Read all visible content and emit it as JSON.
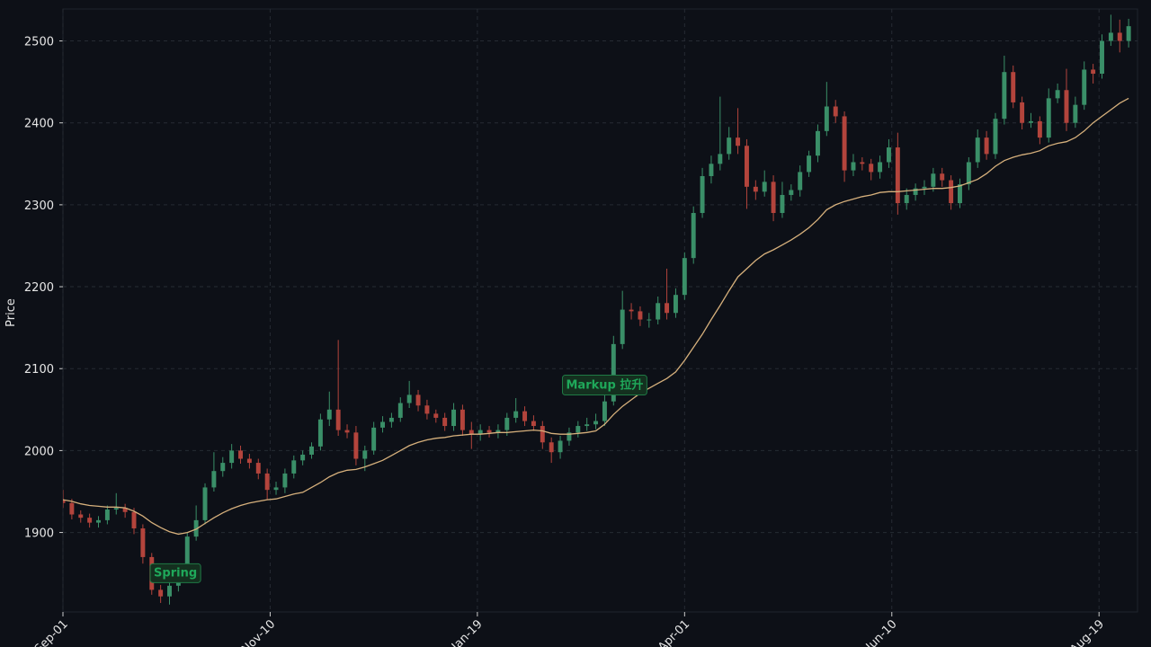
{
  "chart_data": {
    "type": "candlestick",
    "y_label": "Price",
    "x": [
      0,
      3,
      6,
      9,
      12,
      15,
      18,
      21,
      24,
      27,
      30,
      33,
      36,
      39,
      42,
      45,
      48,
      51,
      54,
      57,
      60,
      63,
      66,
      69,
      72,
      75,
      78,
      81,
      84,
      87,
      90,
      93,
      96,
      99,
      102,
      105,
      108,
      111,
      114,
      117,
      120,
      123,
      126,
      129,
      132,
      135,
      138,
      141,
      144,
      147,
      150,
      153,
      156,
      159,
      162,
      165,
      168,
      171,
      174,
      177,
      180,
      183,
      186,
      189,
      192,
      195,
      198,
      201,
      204,
      207,
      210,
      213,
      216,
      219,
      222,
      225,
      228,
      231,
      234,
      237,
      240,
      243,
      246,
      249,
      252,
      255,
      258,
      261,
      264,
      267,
      270,
      273,
      276,
      279,
      282,
      285,
      288,
      291,
      294,
      297,
      300,
      303,
      306,
      309,
      312,
      315,
      318,
      321,
      324,
      327,
      330,
      333,
      336,
      339,
      342,
      345,
      348,
      351,
      354,
      357,
      360
    ],
    "open": [
      1940,
      1936,
      1922,
      1918,
      1912,
      1915,
      1928,
      1930,
      1925,
      1905,
      1870,
      1830,
      1822,
      1835,
      1850,
      1895,
      1915,
      1955,
      1975,
      1985,
      2000,
      1990,
      1985,
      1972,
      1952,
      1955,
      1972,
      1988,
      1995,
      2005,
      2038,
      2050,
      2025,
      2022,
      1990,
      2000,
      2028,
      2035,
      2040,
      2058,
      2068,
      2055,
      2045,
      2040,
      2030,
      2050,
      2025,
      2020,
      2025,
      2022,
      2025,
      2040,
      2048,
      2036,
      2030,
      2010,
      1998,
      2012,
      2022,
      2030,
      2032,
      2036,
      2060,
      2130,
      2172,
      2170,
      2160,
      2160,
      2180,
      2168,
      2190,
      2235,
      2290,
      2335,
      2350,
      2362,
      2382,
      2372,
      2322,
      2316,
      2328,
      2290,
      2312,
      2318,
      2340,
      2360,
      2390,
      2420,
      2408,
      2342,
      2352,
      2350,
      2340,
      2352,
      2370,
      2302,
      2312,
      2320,
      2322,
      2338,
      2330,
      2302,
      2325,
      2352,
      2382,
      2362,
      2405,
      2462,
      2425,
      2400,
      2402,
      2382,
      2430,
      2440,
      2400,
      2422,
      2465,
      2460,
      2500,
      2510,
      2500
    ],
    "high": [
      1952,
      1941,
      1927,
      1923,
      1920,
      1933,
      1948,
      1935,
      1930,
      1910,
      1875,
      1836,
      1840,
      1856,
      1900,
      1933,
      1960,
      1998,
      1992,
      2008,
      2006,
      1996,
      1990,
      1978,
      1962,
      1978,
      1994,
      2000,
      2010,
      2045,
      2072,
      2135,
      2032,
      2030,
      2006,
      2035,
      2042,
      2046,
      2065,
      2085,
      2074,
      2062,
      2050,
      2046,
      2058,
      2056,
      2035,
      2032,
      2030,
      2032,
      2046,
      2064,
      2054,
      2043,
      2036,
      2016,
      2018,
      2028,
      2036,
      2040,
      2045,
      2068,
      2140,
      2195,
      2180,
      2176,
      2168,
      2188,
      2222,
      2198,
      2242,
      2298,
      2345,
      2360,
      2432,
      2395,
      2418,
      2380,
      2330,
      2342,
      2336,
      2328,
      2325,
      2348,
      2366,
      2398,
      2450,
      2428,
      2414,
      2362,
      2358,
      2356,
      2360,
      2380,
      2388,
      2320,
      2326,
      2330,
      2345,
      2345,
      2336,
      2332,
      2358,
      2392,
      2390,
      2412,
      2482,
      2470,
      2432,
      2412,
      2408,
      2442,
      2448,
      2466,
      2432,
      2475,
      2472,
      2508,
      2532,
      2526,
      2527
    ],
    "low": [
      1930,
      1916,
      1912,
      1906,
      1906,
      1910,
      1922,
      1918,
      1898,
      1862,
      1824,
      1814,
      1812,
      1828,
      1845,
      1890,
      1910,
      1950,
      1968,
      1978,
      1984,
      1978,
      1965,
      1940,
      1946,
      1948,
      1966,
      1982,
      1990,
      2000,
      2030,
      2018,
      2015,
      1982,
      1975,
      1995,
      2022,
      2028,
      2035,
      2052,
      2048,
      2038,
      2034,
      2024,
      2024,
      2018,
      2002,
      2012,
      2016,
      2015,
      2018,
      2034,
      2030,
      2024,
      2002,
      1985,
      1990,
      2006,
      2016,
      2024,
      2026,
      2030,
      2055,
      2124,
      2160,
      2152,
      2150,
      2154,
      2160,
      2162,
      2184,
      2228,
      2284,
      2326,
      2342,
      2355,
      2362,
      2295,
      2306,
      2310,
      2280,
      2284,
      2305,
      2310,
      2334,
      2352,
      2384,
      2400,
      2328,
      2335,
      2342,
      2330,
      2332,
      2345,
      2288,
      2294,
      2305,
      2312,
      2316,
      2322,
      2294,
      2296,
      2318,
      2345,
      2355,
      2356,
      2398,
      2418,
      2392,
      2394,
      2374,
      2376,
      2424,
      2390,
      2394,
      2416,
      2448,
      2454,
      2494,
      2486,
      2492
    ],
    "close": [
      1936,
      1922,
      1918,
      1912,
      1915,
      1928,
      1930,
      1925,
      1905,
      1870,
      1830,
      1822,
      1835,
      1850,
      1895,
      1915,
      1955,
      1975,
      1985,
      2000,
      1990,
      1985,
      1972,
      1952,
      1955,
      1972,
      1988,
      1995,
      2005,
      2038,
      2050,
      2025,
      2022,
      1990,
      2000,
      2028,
      2035,
      2040,
      2058,
      2068,
      2055,
      2045,
      2040,
      2030,
      2050,
      2025,
      2020,
      2025,
      2022,
      2025,
      2040,
      2048,
      2036,
      2030,
      2010,
      1998,
      2012,
      2022,
      2030,
      2032,
      2036,
      2060,
      2130,
      2172,
      2170,
      2160,
      2160,
      2180,
      2168,
      2190,
      2235,
      2290,
      2335,
      2350,
      2362,
      2382,
      2372,
      2322,
      2316,
      2328,
      2290,
      2312,
      2318,
      2340,
      2360,
      2390,
      2420,
      2408,
      2342,
      2352,
      2350,
      2340,
      2352,
      2370,
      2302,
      2312,
      2320,
      2322,
      2338,
      2330,
      2302,
      2325,
      2352,
      2382,
      2362,
      2405,
      2462,
      2425,
      2400,
      2402,
      2382,
      2430,
      2440,
      2400,
      2422,
      2465,
      2460,
      2500,
      2510,
      2500,
      2518
    ],
    "up_color": "#3a8f68",
    "down_color": "#b3443c",
    "ma": {
      "color": "#d6b07c",
      "values": [
        1940,
        1938,
        1935,
        1933,
        1932,
        1931,
        1931,
        1930,
        1926,
        1920,
        1912,
        1906,
        1901,
        1898,
        1900,
        1904,
        1911,
        1918,
        1924,
        1929,
        1933,
        1936,
        1938,
        1940,
        1941,
        1944,
        1947,
        1949,
        1955,
        1961,
        1968,
        1973,
        1976,
        1977,
        1980,
        1984,
        1988,
        1994,
        2000,
        2006,
        2010,
        2013,
        2015,
        2016,
        2018,
        2019,
        2020,
        2020,
        2021,
        2022,
        2022,
        2023,
        2024,
        2025,
        2024,
        2021,
        2020,
        2020,
        2021,
        2022,
        2024,
        2032,
        2044,
        2054,
        2062,
        2070,
        2076,
        2082,
        2088,
        2096,
        2110,
        2126,
        2142,
        2160,
        2177,
        2195,
        2212,
        2222,
        2232,
        2240,
        2245,
        2251,
        2257,
        2264,
        2272,
        2282,
        2294,
        2300,
        2304,
        2307,
        2310,
        2312,
        2315,
        2316,
        2316,
        2317,
        2318,
        2319,
        2320,
        2320,
        2321,
        2323,
        2327,
        2331,
        2338,
        2347,
        2354,
        2358,
        2361,
        2363,
        2366,
        2372,
        2375,
        2377,
        2382,
        2390,
        2400,
        2408,
        2416,
        2424,
        2430
      ]
    },
    "xlim": [
      0,
      363
    ],
    "ylim": [
      1803,
      2539
    ],
    "xticks": [
      {
        "value": 0,
        "label": "Sep-01"
      },
      {
        "value": 70,
        "label": "Nov-10"
      },
      {
        "value": 140,
        "label": "Jan-19"
      },
      {
        "value": 210,
        "label": "Apr-01"
      },
      {
        "value": 280,
        "label": "Jun-10"
      },
      {
        "value": 350,
        "label": "Aug-19"
      }
    ],
    "yticks": [
      1900,
      2000,
      2100,
      2200,
      2300,
      2400,
      2500
    ],
    "grid": true,
    "annotations": [
      {
        "text": "Spring",
        "x": 38,
        "y": 1852
      },
      {
        "text": "Markup 拉升",
        "x": 183,
        "y": 2081
      }
    ]
  }
}
